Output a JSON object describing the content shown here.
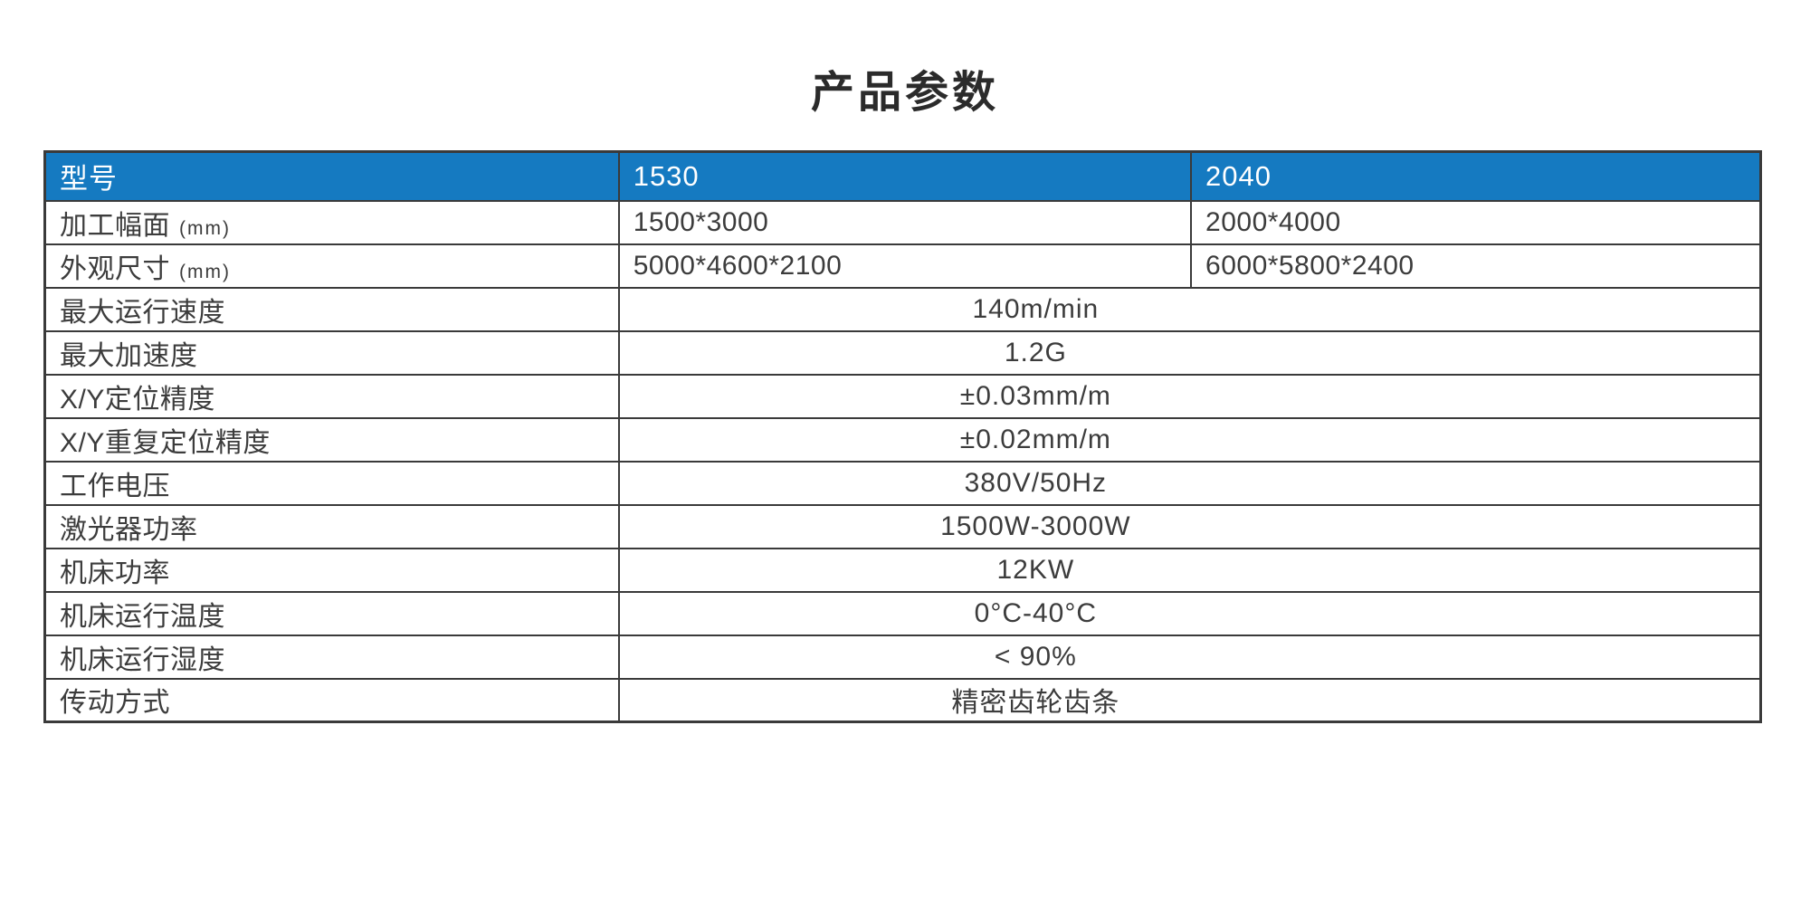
{
  "title": "产品参数",
  "colors": {
    "header_bg": "#157AC1",
    "header_text": "#FFFFFF",
    "border": "#3A3A3A",
    "text": "#3C3C3C",
    "title": "#2B2B2B"
  },
  "table": {
    "header": [
      "型号",
      "1530",
      "2040"
    ],
    "rows": [
      {
        "label": "加工幅面",
        "unit": "(mm)",
        "values": [
          "1500*3000",
          "2000*4000"
        ]
      },
      {
        "label": "外观尺寸",
        "unit": "(mm)",
        "values": [
          "5000*4600*2100",
          "6000*5800*2400"
        ]
      },
      {
        "label": "最大运行速度",
        "merged": "140m/min"
      },
      {
        "label": "最大加速度",
        "merged": "1.2G"
      },
      {
        "label": "X/Y定位精度",
        "merged": "±0.03mm/m"
      },
      {
        "label": "X/Y重复定位精度",
        "merged": "±0.02mm/m"
      },
      {
        "label": "工作电压",
        "merged": "380V/50Hz"
      },
      {
        "label": "激光器功率",
        "merged": "1500W-3000W"
      },
      {
        "label": "机床功率",
        "merged": "12KW"
      },
      {
        "label": "机床运行温度",
        "merged": "0°C-40°C"
      },
      {
        "label": "机床运行湿度",
        "merged": "< 90%"
      },
      {
        "label": "传动方式",
        "merged": "精密齿轮齿条"
      }
    ]
  }
}
